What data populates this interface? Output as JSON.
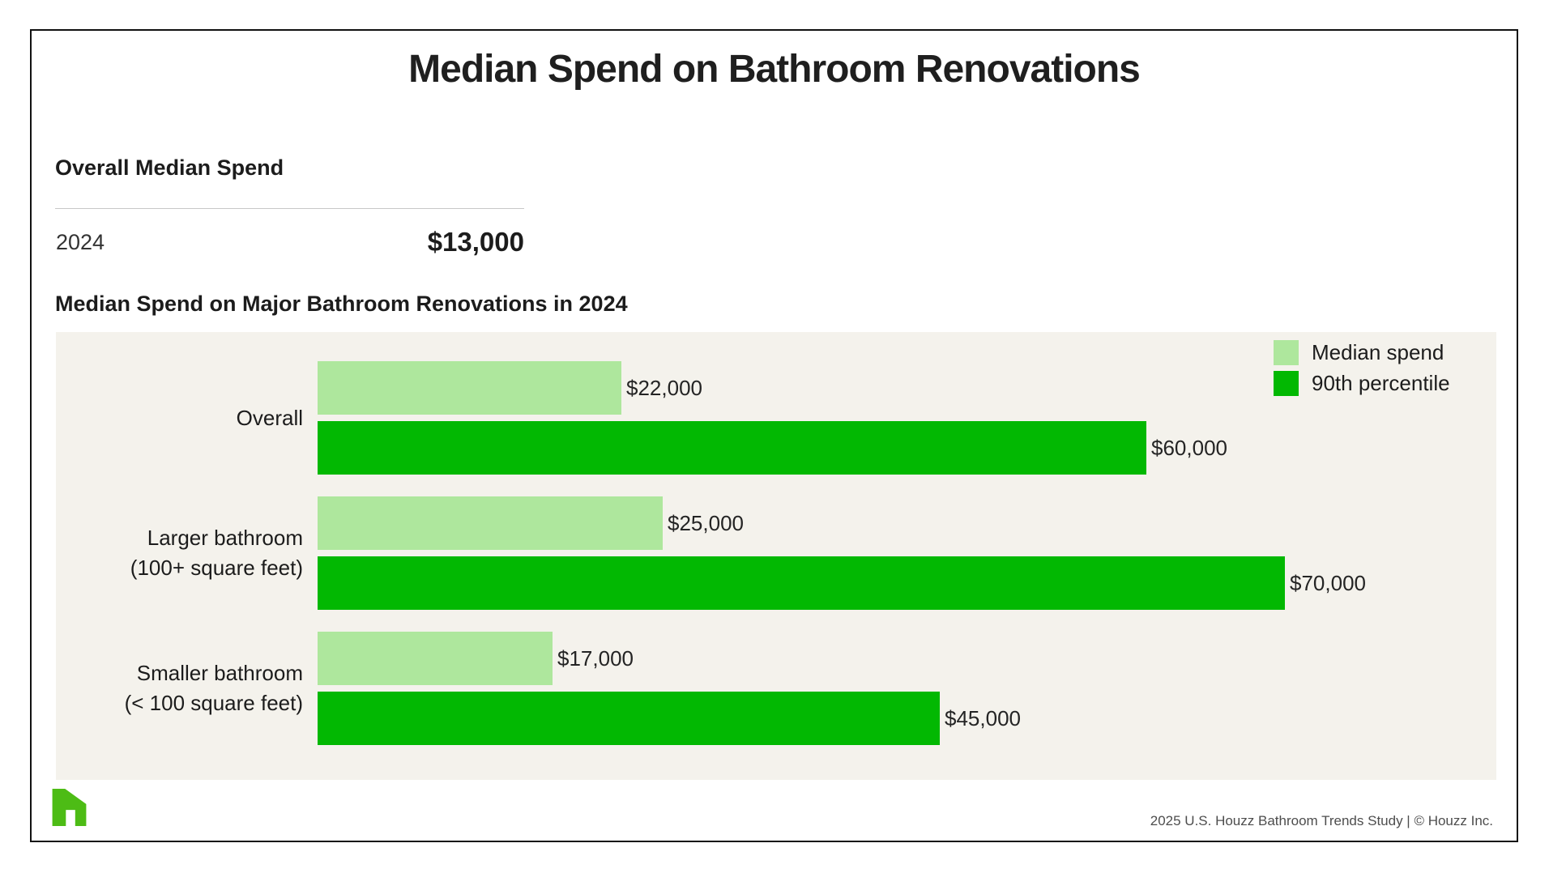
{
  "title": "Median Spend on Bathroom Renovations",
  "overall_median": {
    "heading": "Overall Median Spend",
    "year": "2024",
    "value": "$13,000"
  },
  "chart": {
    "subtitle": "Median Spend on Major Bathroom Renovations in 2024"
  },
  "chart_data": {
    "type": "bar",
    "orientation": "horizontal",
    "title": "Median Spend on Major Bathroom Renovations in 2024",
    "categories": [
      "Overall",
      "Larger bathroom\n(100+ square feet)",
      "Smaller bathroom\n(< 100 square feet)"
    ],
    "series": [
      {
        "name": "Median spend",
        "color": "#aee79d",
        "values": [
          22000,
          25000,
          17000
        ],
        "labels": [
          "$22,000",
          "$25,000",
          "$17,000"
        ]
      },
      {
        "name": "90th percentile",
        "color": "#02b802",
        "values": [
          60000,
          70000,
          45000
        ],
        "labels": [
          "$60,000",
          "$70,000",
          "$45,000"
        ]
      }
    ],
    "xlim": [
      0,
      70000
    ],
    "grid": false,
    "legend_position": "top-right",
    "panel_background": "#f4f2ec"
  },
  "footer": {
    "credit": "2025 U.S. Houzz Bathroom Trends Study  |  © Houzz Inc.",
    "logo": "houzz-logo",
    "logo_color": "#4dbc15"
  }
}
